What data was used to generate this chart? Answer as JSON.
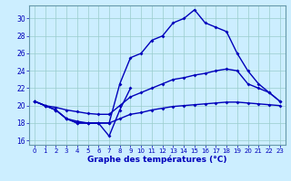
{
  "title": "Graphe des températures (°C)",
  "bg_color": "#cceeff",
  "grid_color": "#99cccc",
  "line_color": "#0000bb",
  "xlim": [
    -0.5,
    23.5
  ],
  "ylim": [
    15.5,
    31.5
  ],
  "xticks": [
    0,
    1,
    2,
    3,
    4,
    5,
    6,
    7,
    8,
    9,
    10,
    11,
    12,
    13,
    14,
    15,
    16,
    17,
    18,
    19,
    20,
    21,
    22,
    23
  ],
  "yticks": [
    16,
    18,
    20,
    22,
    24,
    26,
    28,
    30
  ],
  "series1_x": [
    0,
    1,
    2,
    3,
    4,
    5,
    6,
    7,
    8,
    9
  ],
  "series1_y": [
    20.5,
    20.0,
    19.5,
    18.5,
    18.0,
    18.0,
    18.0,
    16.5,
    19.5,
    22.0
  ],
  "series2_x": [
    0,
    1,
    2,
    3,
    4,
    5,
    6,
    7,
    8,
    9,
    10,
    11,
    12,
    13,
    14,
    15,
    16,
    17,
    18,
    19,
    20,
    21,
    22,
    23
  ],
  "series2_y": [
    20.5,
    20.0,
    19.5,
    18.5,
    18.2,
    18.0,
    18.0,
    18.0,
    18.5,
    19.0,
    19.2,
    19.5,
    19.7,
    19.9,
    20.0,
    20.1,
    20.2,
    20.3,
    20.4,
    20.4,
    20.3,
    20.2,
    20.1,
    20.0
  ],
  "series3_x": [
    0,
    1,
    2,
    3,
    4,
    5,
    6,
    7,
    8,
    9,
    10,
    11,
    12,
    13,
    14,
    15,
    16,
    17,
    18,
    19,
    20,
    21,
    22,
    23
  ],
  "series3_y": [
    20.5,
    20.0,
    19.8,
    19.5,
    19.3,
    19.1,
    19.0,
    19.0,
    20.0,
    21.0,
    21.5,
    22.0,
    22.5,
    23.0,
    23.2,
    23.5,
    23.7,
    24.0,
    24.2,
    24.0,
    22.5,
    22.0,
    21.5,
    20.5
  ],
  "series4_x": [
    0,
    1,
    2,
    3,
    4,
    5,
    6,
    7,
    8,
    9,
    10,
    11,
    12,
    13,
    14,
    15,
    16,
    17,
    18,
    19,
    20,
    21,
    22,
    23
  ],
  "series4_y": [
    20.5,
    20.0,
    19.5,
    18.5,
    18.0,
    18.0,
    18.0,
    18.0,
    22.5,
    25.5,
    26.0,
    27.5,
    28.0,
    29.5,
    30.0,
    31.0,
    29.5,
    29.0,
    28.5,
    26.0,
    24.0,
    22.5,
    21.5,
    20.5
  ]
}
